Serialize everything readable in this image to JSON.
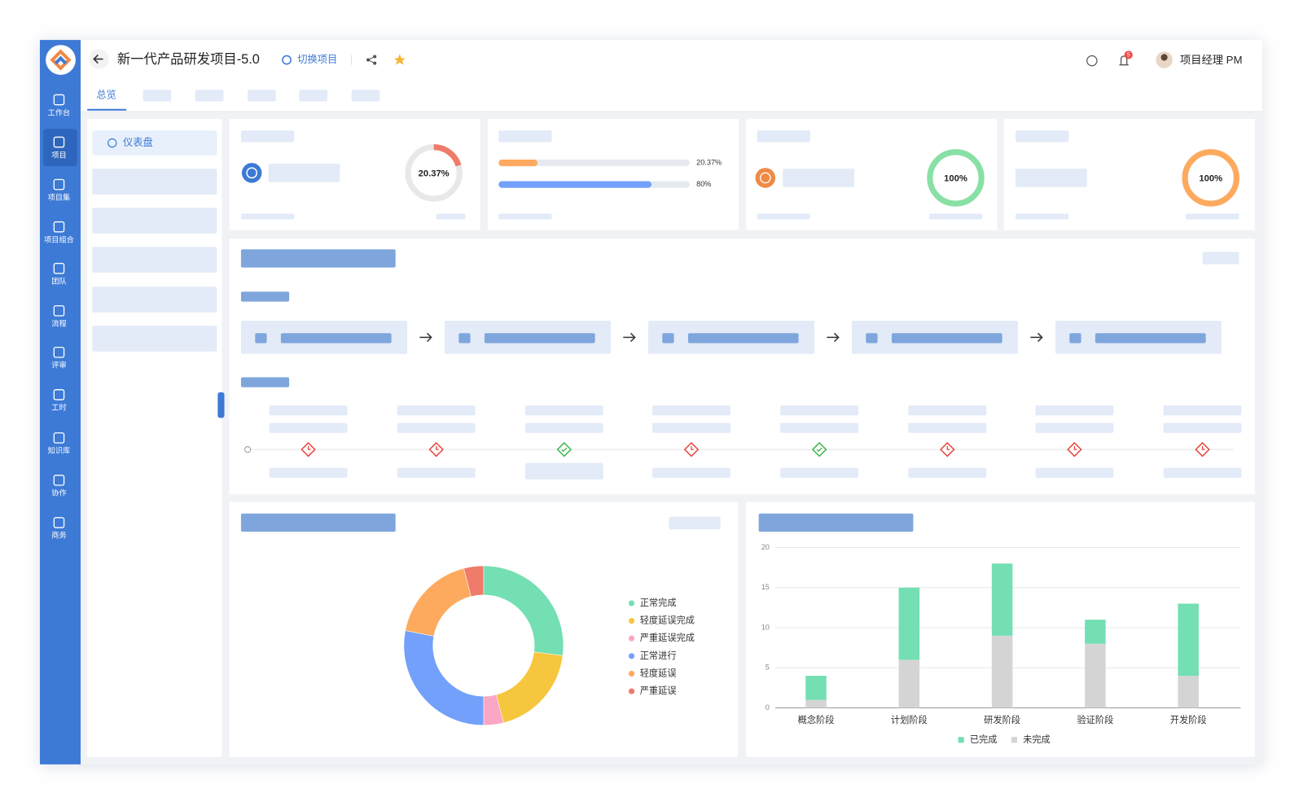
{
  "header": {
    "title": "新一代产品研发项目-5.0",
    "switch_project": "切换项目",
    "notifications": 5,
    "user": "项目经理 PM"
  },
  "sidebar": [
    "工作台",
    "项目",
    "项目集",
    "项目组合",
    "团队",
    "流程",
    "评审",
    "工时",
    "知识库",
    "协作",
    "商务"
  ],
  "tabs": [
    "总览"
  ],
  "side_menu": [
    "仪表盘"
  ],
  "kpi_cards": [
    {
      "ring": {
        "value": 20.37,
        "label": "20.37%"
      },
      "color": "#ef7b6a"
    },
    {
      "bars": [
        {
          "value": 20.37,
          "label": "20.37%",
          "color": "#fdaa5f"
        },
        {
          "value": 80,
          "label": "80%",
          "color": "#73a0fa"
        }
      ]
    },
    {
      "ring": {
        "value": 100,
        "label": "100%"
      },
      "color": "#88e0a5"
    },
    {
      "ring": {
        "value": 100,
        "label": "100%"
      },
      "color": "#fdaa5f"
    }
  ],
  "chart_data": [
    {
      "type": "pie",
      "categories": [
        "正常完成",
        "轻度延误完成",
        "严重延误完成",
        "正常进行",
        "轻度延误",
        "严重延误"
      ],
      "values": [
        27,
        19,
        4,
        28,
        18,
        4
      ],
      "colors": [
        "#73dfb3",
        "#f7c63f",
        "#f9a7c5",
        "#73a0fa",
        "#fdaa5f",
        "#ef7b6a"
      ]
    },
    {
      "type": "bar",
      "stacked": true,
      "categories": [
        "概念阶段",
        "计划阶段",
        "研发阶段",
        "验证阶段",
        "开发阶段"
      ],
      "series": [
        {
          "name": "已完成",
          "color": "#73dfb3",
          "values": [
            3,
            9,
            9,
            3,
            9
          ]
        },
        {
          "name": "未完成",
          "color": "#d4d4d4",
          "values": [
            1,
            6,
            9,
            8,
            4
          ]
        }
      ],
      "ylim": [
        0,
        20
      ],
      "yticks": [
        0,
        5,
        10,
        15,
        20
      ],
      "grid": true
    }
  ]
}
